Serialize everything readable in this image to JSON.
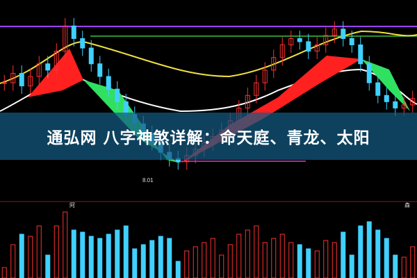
{
  "overlay": {
    "title": "通弘网 八字神煞详解：命天庭、青龙、太阳"
  },
  "chart_data": {
    "type": "candlestick",
    "title": "",
    "annotations": [
      "8.01"
    ],
    "closes": [
      10.6,
      10.9,
      10.5,
      10.8,
      11.2,
      11.0,
      11.6,
      12.4,
      12.0,
      11.7,
      11.2,
      10.8,
      10.4,
      10.0,
      9.6,
      9.3,
      9.0,
      8.7,
      8.4,
      8.2,
      8.1,
      8.3,
      8.5,
      8.7,
      8.9,
      9.1,
      9.4,
      9.8,
      10.2,
      10.6,
      11.0,
      11.4,
      11.8,
      12.0,
      11.9,
      11.6,
      11.8,
      12.1,
      12.3,
      12.0,
      11.8,
      11.2,
      10.6,
      10.2,
      10.0,
      9.8,
      9.9,
      10.1
    ],
    "volume_marker": "阿",
    "volume_marker_right": "森",
    "colors": {
      "up": "#ff3030",
      "down": "#40d0ff",
      "band_up": "#ff2020",
      "band_down": "#30e060"
    }
  }
}
